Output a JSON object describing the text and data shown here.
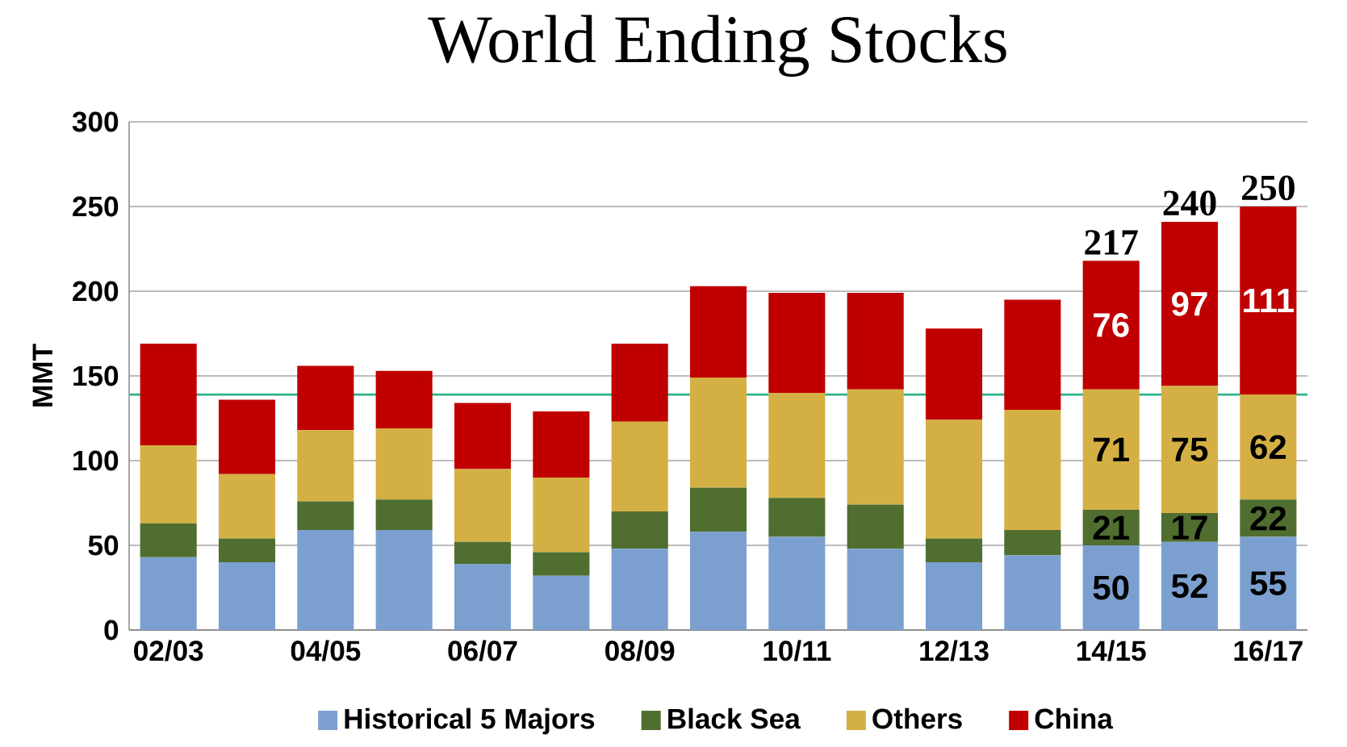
{
  "chart_data": {
    "type": "bar",
    "title": "World Ending Stocks",
    "ylabel": "MMT",
    "stacked": true,
    "categories": [
      "02/03",
      null,
      "04/05",
      null,
      "06/07",
      null,
      "08/09",
      null,
      "10/11",
      null,
      "12/13",
      null,
      "14/15",
      null,
      "16/17"
    ],
    "series": [
      {
        "name": "Historical 5 Majors",
        "color": "#7ba0d0",
        "values": [
          43,
          40,
          59,
          59,
          39,
          32,
          48,
          58,
          55,
          48,
          40,
          44,
          50,
          52,
          55
        ],
        "value_labels": [
          null,
          null,
          null,
          null,
          null,
          null,
          null,
          null,
          null,
          null,
          null,
          null,
          "50",
          "52",
          "55"
        ]
      },
      {
        "name": "Black Sea",
        "color": "#4f6e2f",
        "values": [
          20,
          14,
          17,
          18,
          13,
          14,
          22,
          26,
          23,
          26,
          14,
          15,
          21,
          17,
          22
        ],
        "value_labels": [
          null,
          null,
          null,
          null,
          null,
          null,
          null,
          null,
          null,
          null,
          null,
          null,
          "21",
          "17",
          "22"
        ]
      },
      {
        "name": "Others",
        "color": "#d4b044",
        "values": [
          46,
          38,
          42,
          42,
          43,
          44,
          53,
          65,
          62,
          68,
          70,
          71,
          71,
          75,
          62
        ],
        "value_labels": [
          null,
          null,
          null,
          null,
          null,
          null,
          null,
          null,
          null,
          null,
          null,
          null,
          "71",
          "75",
          "62"
        ]
      },
      {
        "name": "China",
        "color": "#c00000",
        "values": [
          60,
          44,
          38,
          34,
          39,
          39,
          46,
          54,
          59,
          57,
          54,
          65,
          76,
          97,
          111
        ],
        "value_labels": [
          null,
          null,
          null,
          null,
          null,
          null,
          null,
          null,
          null,
          null,
          null,
          null,
          "76",
          "97",
          "111"
        ]
      }
    ],
    "totals": [
      null,
      null,
      null,
      null,
      null,
      null,
      null,
      null,
      null,
      null,
      null,
      null,
      "217",
      "240",
      "250"
    ],
    "ref_lines": [
      {
        "axis": "y",
        "value": 139,
        "color": "#2db38a"
      }
    ],
    "ylim": [
      0,
      300
    ],
    "yticks": [
      0,
      50,
      100,
      150,
      200,
      250,
      300
    ],
    "grid": "y",
    "legend": "bottom"
  }
}
